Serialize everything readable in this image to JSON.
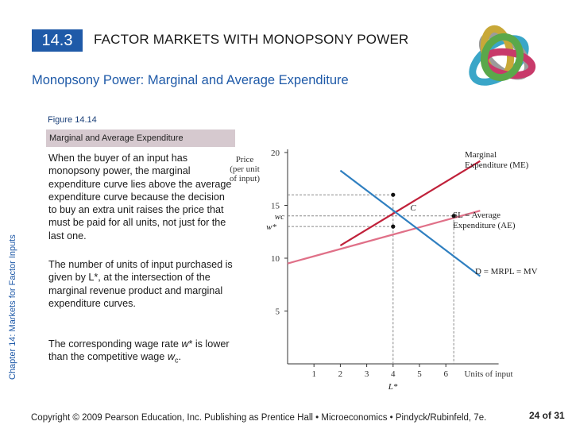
{
  "header": {
    "section_number": "14.3",
    "section_title": "FACTOR MARKETS WITH MONOPSONY POWER"
  },
  "slide": {
    "subtitle": "Monopsony Power: Marginal and Average Expenditure",
    "figure_label": "Figure 14.14",
    "figure_title": "Marginal and Average Expenditure",
    "side_tab": "Chapter 14: Markets for Factor Inputs",
    "paragraphs": [
      "When the buyer of an input has monopsony power, the marginal expenditure curve lies above the average expenditure curve because the decision to buy an extra unit raises the price that must be paid for all units, not just for the last one.",
      "The number of units of input purchased is given by L*, at the intersection of the marginal revenue product and marginal expenditure curves.",
      "The corresponding wage rate w* is lower than the competitive wage wc."
    ]
  },
  "footer": {
    "copyright": "Copyright © 2009 Pearson Education, Inc. Publishing as Prentice Hall • Microeconomics • Pindyck/Rubinfeld, 7e.",
    "page": "24 of 31"
  },
  "colors": {
    "accent": "#1f5aa8",
    "me_curve": "#c0213a",
    "se_curve": "#e07088",
    "demand_curve": "#2f7fc0"
  },
  "chart_data": {
    "type": "line",
    "ylabel": "Price (per unit of input)",
    "xlabel": "Units of input",
    "xlim": [
      0,
      8
    ],
    "ylim": [
      0,
      20
    ],
    "x_ticks": [
      1,
      2,
      3,
      4,
      5,
      6
    ],
    "y_ticks": [
      5,
      10,
      15,
      20
    ],
    "series": [
      {
        "name": "Marginal Expenditure (ME)",
        "label": "Marginal Expenditure (ME)",
        "color": "#c0213a",
        "x": [
          2,
          7.3
        ],
        "y": [
          11.2,
          19.2
        ]
      },
      {
        "name": "SL = Average Expenditure (AE)",
        "label": "SL = Average Expenditure (AE)",
        "color": "#e07088",
        "x": [
          0,
          7.3
        ],
        "y": [
          9.5,
          14.5
        ]
      },
      {
        "name": "D = MRPL = MV",
        "label": "D = MRPL = MV",
        "color": "#2f7fc0",
        "x": [
          2,
          7.3
        ],
        "y": [
          18.3,
          8.3
        ]
      }
    ],
    "annotations": [
      {
        "text": "C",
        "x": 4.65,
        "y": 14.2
      },
      {
        "text": "w*",
        "y": 13,
        "axis": "y"
      },
      {
        "text": "wc",
        "y": 14,
        "axis": "y"
      },
      {
        "text": "L*",
        "x": 4,
        "axis": "x"
      }
    ],
    "guide_points": [
      {
        "x": 4,
        "y": 16
      },
      {
        "x": 4,
        "y": 13
      },
      {
        "x": 6.3,
        "y": 14
      }
    ]
  }
}
